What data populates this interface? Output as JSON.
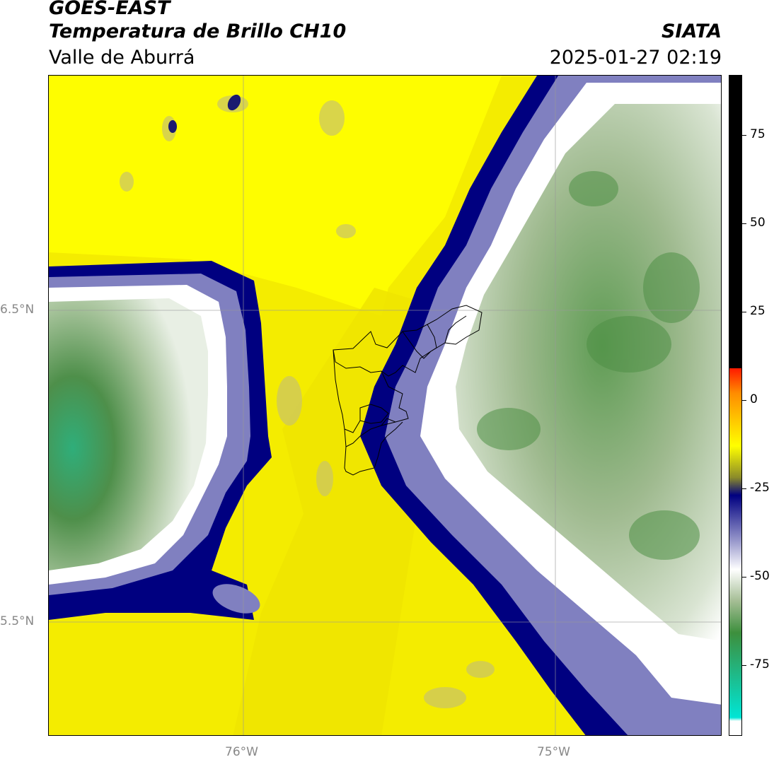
{
  "header": {
    "title_line1": "GOES-EAST",
    "title_line2": "Temperatura de Brillo CH10",
    "subtitle": "Valle de Aburrá",
    "brand": "SIATA",
    "timestamp": "2025-01-27 02:19"
  },
  "map": {
    "lat_labels": [
      "6.5°N",
      "5.5°N"
    ],
    "lon_labels": [
      "76°W",
      "75°W"
    ]
  },
  "colorbar": {
    "tick_labels": [
      "75",
      "50",
      "25",
      "0",
      "-25",
      "-50",
      "-75"
    ],
    "tick_values": [
      75,
      50,
      25,
      0,
      -25,
      -50,
      -75
    ],
    "range": [
      -95,
      92
    ],
    "colors": {
      "black": "#000000",
      "red": "#ff1a00",
      "orange": "#ff8c00",
      "yellow": "#ffff00",
      "olive": "#8a8a2a",
      "navy": "#000080",
      "lavender": "#9999cc",
      "white": "#ffffff",
      "sage": "#a4bd94",
      "green": "#3d8f3d",
      "cyan": "#00e5d5"
    }
  }
}
